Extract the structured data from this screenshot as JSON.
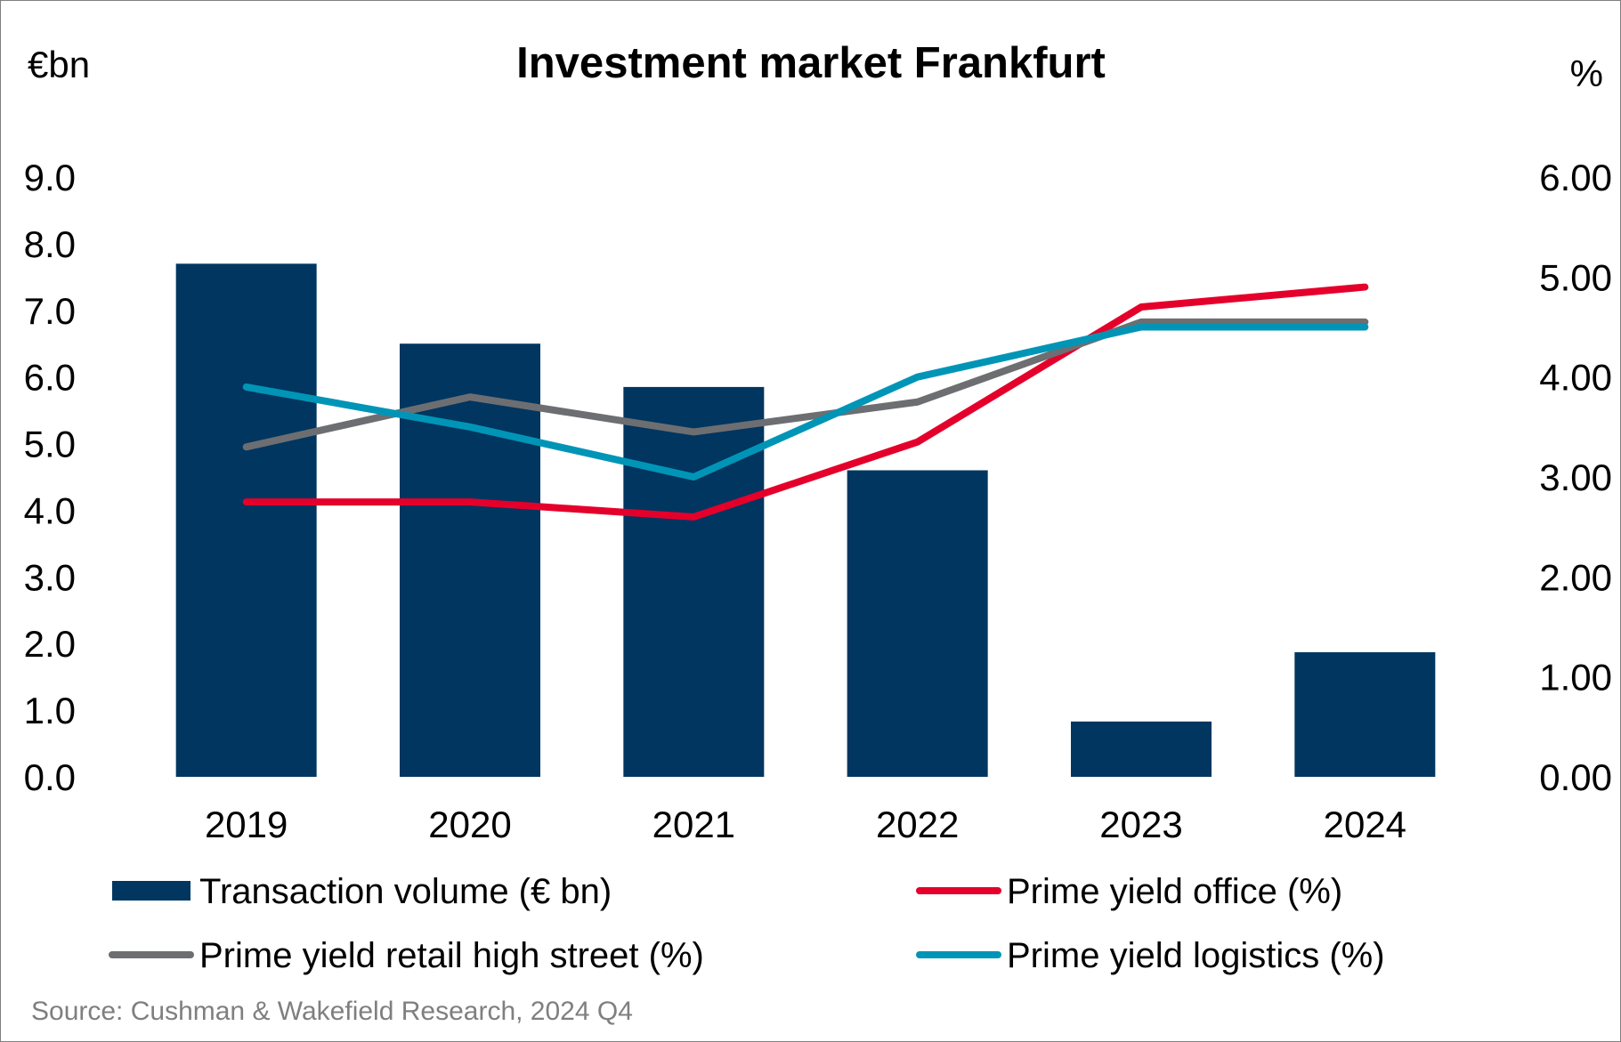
{
  "chart_data": {
    "type": "bar",
    "title": "Investment market Frankfurt",
    "y_left_unit": "€bn",
    "y_right_unit": "%",
    "categories": [
      "2019",
      "2020",
      "2021",
      "2022",
      "2023",
      "2024"
    ],
    "y_left": {
      "range": [
        0,
        9
      ],
      "ticks": [
        "0.0",
        "1.0",
        "2.0",
        "3.0",
        "4.0",
        "5.0",
        "6.0",
        "7.0",
        "8.0",
        "9.0"
      ]
    },
    "y_right": {
      "range": [
        0,
        6
      ],
      "ticks": [
        "0.00",
        "1.00",
        "2.00",
        "3.00",
        "4.00",
        "5.00",
        "6.00"
      ]
    },
    "grid": false,
    "legend_position": "bottom",
    "series": [
      {
        "name": "Transaction volume (€ bn)",
        "type": "bar",
        "axis": "left",
        "color": "#003660",
        "values": [
          7.7,
          6.5,
          5.85,
          4.6,
          0.83,
          1.87
        ]
      },
      {
        "name": "Prime yield office (%)",
        "type": "line",
        "axis": "right",
        "color": "#e4002b",
        "values": [
          2.75,
          2.75,
          2.6,
          3.35,
          4.7,
          4.9
        ]
      },
      {
        "name": "Prime yield retail high street (%)",
        "type": "line",
        "axis": "right",
        "color": "#6d6e71",
        "values": [
          3.3,
          3.8,
          3.45,
          3.75,
          4.55,
          4.55
        ]
      },
      {
        "name": "Prime yield logistics (%)",
        "type": "line",
        "axis": "right",
        "color": "#0095b6",
        "values": [
          3.9,
          3.5,
          3.0,
          4.0,
          4.5,
          4.5
        ]
      }
    ],
    "source": "Source: Cushman & Wakefield Research, 2024 Q4"
  }
}
